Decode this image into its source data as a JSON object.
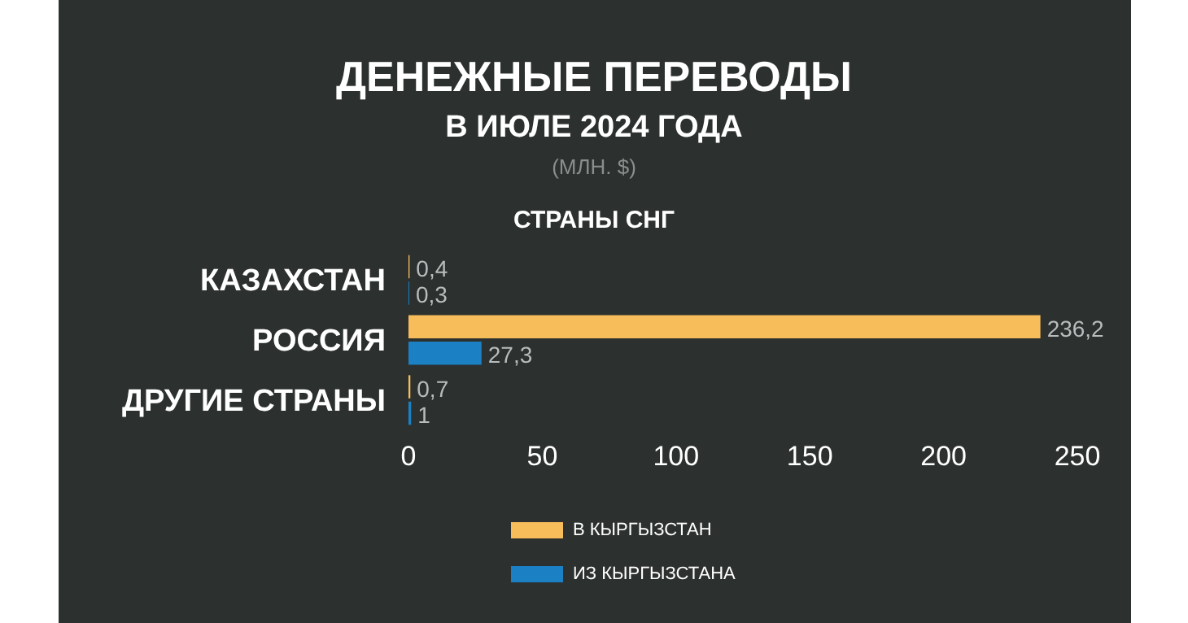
{
  "chart_data": {
    "type": "bar",
    "orientation": "horizontal",
    "title": "ДЕНЕЖНЫЕ ПЕРЕВОДЫ",
    "subtitle": "В ИЮЛЕ 2024 ГОДА",
    "annotations": [
      "(МЛН. $)",
      "СТРАНЫ СНГ"
    ],
    "categories": [
      "КАЗАХСТАН",
      "РОССИЯ",
      "ДРУГИЕ СТРАНЫ"
    ],
    "series": [
      {
        "name": "В КЫРГЫЗСТАН",
        "color": "#f8bd5b",
        "values": [
          0.4,
          236.2,
          0.7
        ],
        "value_labels": [
          "0,4",
          "236,2",
          "0,7"
        ]
      },
      {
        "name": "ИЗ КЫРГЫЗСТАНА",
        "color": "#1b80c4",
        "values": [
          0.3,
          27.3,
          1
        ],
        "value_labels": [
          "0,3",
          "27,3",
          "1"
        ]
      }
    ],
    "xlim": [
      0,
      250
    ],
    "xticks": [
      0,
      50,
      100,
      150,
      200,
      250
    ],
    "grid": false,
    "legend": "bottom"
  }
}
